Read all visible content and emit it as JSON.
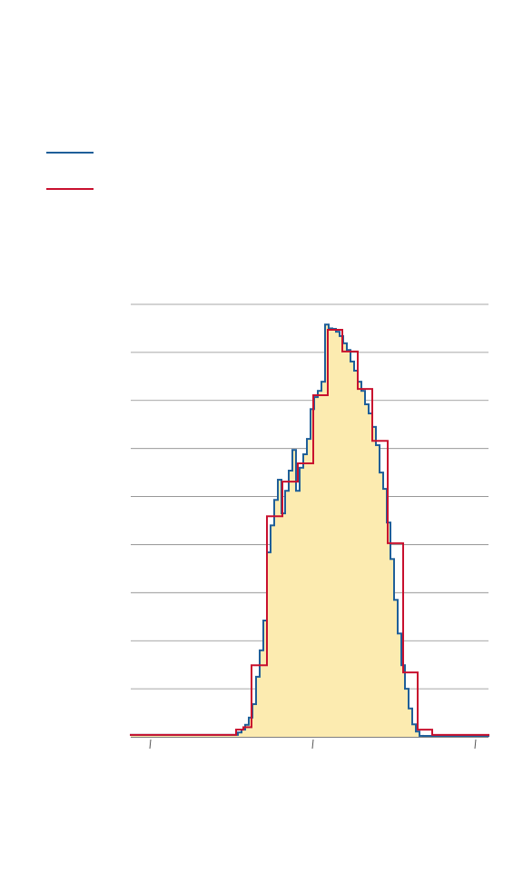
{
  "chart_data": {
    "type": "histogram",
    "xlim": [
      144,
      538
    ],
    "xticks": [
      165,
      344,
      523
    ],
    "ylim": [
      0,
      9
    ],
    "yticks": [
      0,
      1,
      2,
      3,
      4,
      5,
      6,
      7,
      8,
      9
    ],
    "grid": true,
    "fill_color": "#fcebb0",
    "series": [
      {
        "color": "#1f5f99",
        "bins": [
          144,
          262,
          266,
          270,
          274,
          278,
          282,
          286,
          290,
          294,
          298,
          302,
          306,
          310,
          314,
          318,
          322,
          326,
          330,
          334,
          338,
          342,
          346,
          350,
          354,
          358,
          362,
          366,
          370,
          374,
          378,
          382,
          386,
          390,
          394,
          398,
          402,
          406,
          410,
          414,
          418,
          422,
          426,
          430,
          434,
          438,
          442,
          446,
          450,
          454,
          458,
          462,
          466,
          538
        ],
        "values": [
          0.04,
          0.09,
          0.15,
          0.25,
          0.4,
          0.68,
          1.25,
          1.8,
          2.42,
          3.84,
          4.4,
          4.93,
          5.35,
          4.65,
          5.12,
          5.54,
          5.97,
          5.12,
          5.6,
          5.88,
          6.2,
          6.82,
          7.07,
          7.2,
          7.39,
          8.58,
          8.5,
          8.49,
          8.43,
          8.34,
          8.19,
          8.05,
          7.81,
          7.62,
          7.39,
          7.2,
          6.92,
          6.73,
          6.45,
          6.07,
          5.5,
          5.16,
          4.46,
          3.7,
          2.85,
          2.15,
          1.49,
          1.0,
          0.59,
          0.26,
          0.11,
          0.02,
          0.02
        ]
      },
      {
        "color": "#c8102e",
        "bins": [
          144,
          260,
          268,
          277,
          294,
          311,
          328,
          345,
          361,
          377,
          394,
          410,
          427,
          444,
          460,
          476,
          538
        ],
        "values": [
          0.04,
          0.15,
          0.2,
          1.49,
          4.59,
          5.31,
          5.69,
          7.11,
          8.47,
          8.02,
          7.24,
          6.16,
          4.03,
          1.34,
          0.15,
          0.04
        ]
      }
    ]
  }
}
